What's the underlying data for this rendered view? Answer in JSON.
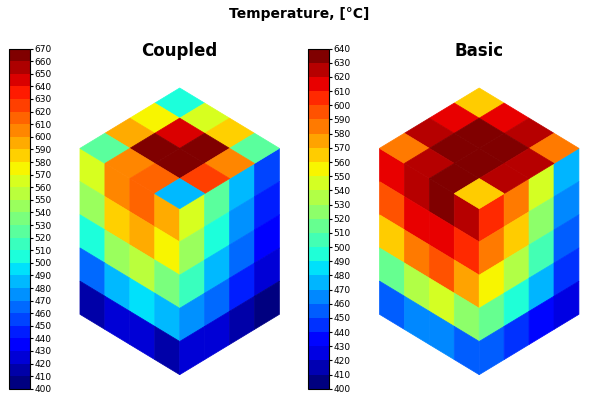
{
  "title": "Temperature, [°C]",
  "chart_data": [
    {
      "type": "heatmap",
      "title": "Coupled",
      "cells": {
        "top": [
          [
            500,
            560,
            580,
            520
          ],
          [
            570,
            640,
            660,
            600
          ],
          [
            590,
            660,
            670,
            620
          ],
          [
            520,
            600,
            610,
            480
          ]
        ],
        "left": [
          [
            560,
            600,
            610,
            590
          ],
          [
            540,
            580,
            590,
            570
          ],
          [
            500,
            540,
            550,
            530
          ],
          [
            460,
            480,
            490,
            480
          ],
          [
            410,
            420,
            420,
            410
          ]
        ],
        "right": [
          [
            560,
            520,
            480,
            450
          ],
          [
            540,
            500,
            470,
            440
          ],
          [
            510,
            480,
            460,
            430
          ],
          [
            470,
            460,
            440,
            420
          ],
          [
            420,
            420,
            410,
            400
          ]
        ]
      },
      "colorbar_range": [
        400,
        670
      ],
      "colorbar_ticks": [
        400,
        410,
        420,
        430,
        440,
        450,
        460,
        470,
        480,
        490,
        500,
        510,
        520,
        530,
        540,
        550,
        560,
        570,
        580,
        590,
        600,
        610,
        620,
        630,
        640,
        650,
        660,
        670
      ]
    },
    {
      "type": "heatmap",
      "title": "Basic",
      "cells": {
        "top": [
          [
            560,
            610,
            620,
            580
          ],
          [
            610,
            635,
            640,
            620
          ],
          [
            620,
            640,
            640,
            625
          ],
          [
            580,
            625,
            630,
            560
          ]
        ],
        "left": [
          [
            610,
            625,
            630,
            620
          ],
          [
            590,
            610,
            615,
            600
          ],
          [
            560,
            580,
            590,
            570
          ],
          [
            510,
            530,
            540,
            520
          ],
          [
            450,
            460,
            460,
            450
          ]
        ],
        "right": [
          [
            600,
            580,
            540,
            470
          ],
          [
            580,
            560,
            520,
            460
          ],
          [
            550,
            530,
            500,
            450
          ],
          [
            510,
            490,
            470,
            440
          ],
          [
            450,
            440,
            430,
            420
          ]
        ]
      },
      "colorbar_range": [
        400,
        640
      ],
      "colorbar_ticks": [
        400,
        410,
        420,
        430,
        440,
        450,
        460,
        470,
        480,
        490,
        500,
        510,
        520,
        530,
        540,
        550,
        560,
        570,
        580,
        590,
        600,
        610,
        620,
        630,
        640
      ]
    }
  ]
}
